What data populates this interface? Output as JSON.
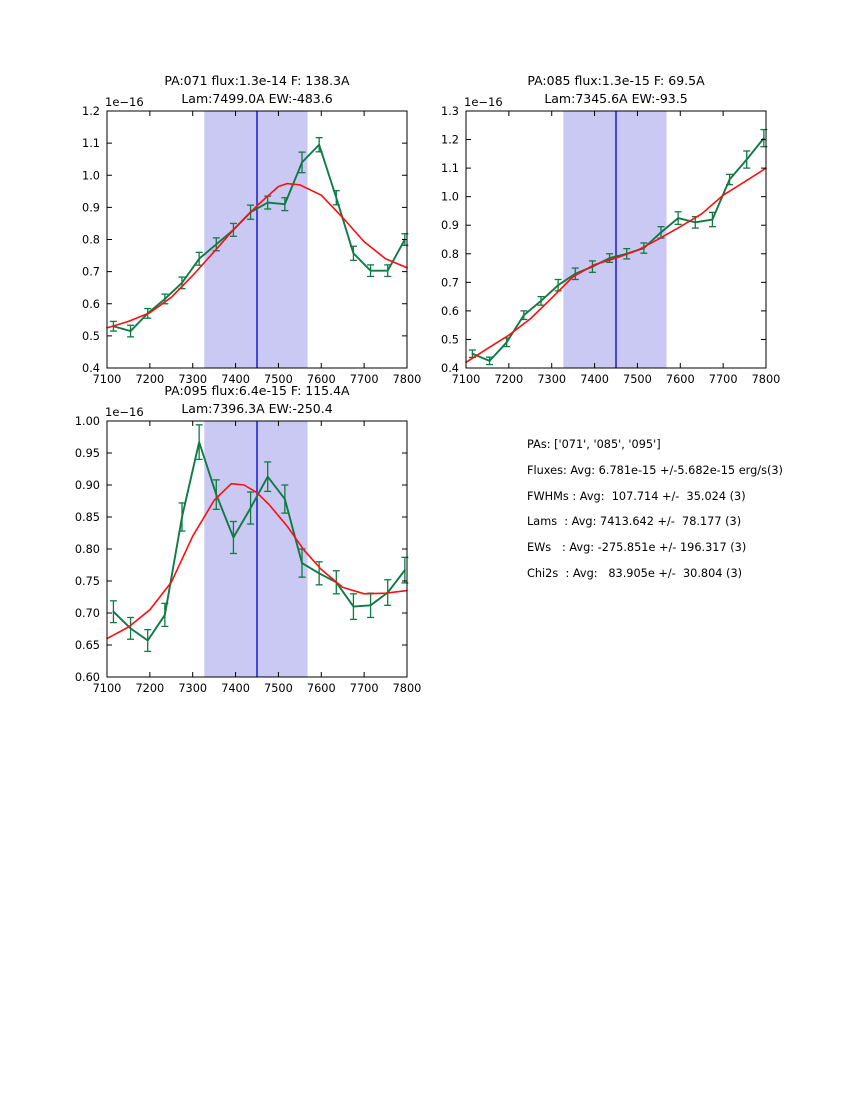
{
  "page": {
    "background": "#ffffff"
  },
  "colors": {
    "data_line": "#0f7a44",
    "fit_line": "#fb0f0f",
    "band_fill": "#c9c9f4",
    "center_line": "#0000cc",
    "frame": "#000000",
    "text": "#000000"
  },
  "stats_panel": {
    "lines": [
      "PAs: ['071', '085', '095']",
      "Fluxes: Avg: 6.781e-15 +/-5.682e-15 erg/s(3)",
      "FWHMs : Avg:  107.714 +/-  35.024 (3)",
      "Lams  : Avg: 7413.642 +/-  78.177 (3)",
      "EWs   : Avg: -275.851e +/- 196.317 (3)",
      "Chi2s  : Avg:   83.905e +/-  30.804 (3)"
    ]
  },
  "chart_data": [
    {
      "type": "line",
      "title_line1": "PA:071 flux:1.3e-14 F: 138.3A",
      "title_line2": "Lam:7499.0A EW:-483.6",
      "y_offset_label": "1e−16",
      "xlim": [
        7100,
        7800
      ],
      "ylim": [
        0.4,
        1.2
      ],
      "xticks": [
        7100,
        7200,
        7300,
        7400,
        7500,
        7600,
        7700,
        7800
      ],
      "ytick_labels": [
        "0.4",
        "0.5",
        "0.6",
        "0.7",
        "0.8",
        "0.9",
        "1.0",
        "1.1",
        "1.2"
      ],
      "band": [
        7327,
        7568
      ],
      "center_line_x": 7450,
      "grid": false,
      "series": [
        {
          "name": "spectrum-data",
          "role": "data",
          "color": "green",
          "x": [
            7115,
            7155,
            7195,
            7235,
            7275,
            7315,
            7355,
            7395,
            7435,
            7475,
            7515,
            7555,
            7595,
            7635,
            7675,
            7715,
            7755,
            7795
          ],
          "y": [
            0.53,
            0.515,
            0.57,
            0.615,
            0.665,
            0.74,
            0.785,
            0.83,
            0.885,
            0.915,
            0.91,
            1.04,
            1.095,
            0.93,
            0.757,
            0.703,
            0.703,
            0.8
          ],
          "yerr": [
            0.015,
            0.018,
            0.015,
            0.015,
            0.018,
            0.02,
            0.02,
            0.02,
            0.022,
            0.02,
            0.02,
            0.032,
            0.022,
            0.022,
            0.022,
            0.018,
            0.018,
            0.018
          ]
        },
        {
          "name": "gaussian-fit",
          "role": "fit",
          "color": "red",
          "x": [
            7100,
            7150,
            7200,
            7250,
            7300,
            7350,
            7400,
            7450,
            7500,
            7520,
            7550,
            7600,
            7650,
            7700,
            7750,
            7800
          ],
          "y": [
            0.525,
            0.545,
            0.572,
            0.62,
            0.688,
            0.762,
            0.838,
            0.905,
            0.965,
            0.974,
            0.97,
            0.938,
            0.868,
            0.793,
            0.74,
            0.712
          ]
        }
      ]
    },
    {
      "type": "line",
      "title_line1": "PA:085 flux:1.3e-15 F: 69.5A",
      "title_line2": "Lam:7345.6A EW:-93.5",
      "y_offset_label": "1e−16",
      "xlim": [
        7100,
        7800
      ],
      "ylim": [
        0.4,
        1.3
      ],
      "xticks": [
        7100,
        7200,
        7300,
        7400,
        7500,
        7600,
        7700,
        7800
      ],
      "ytick_labels": [
        "0.4",
        "0.5",
        "0.6",
        "0.7",
        "0.8",
        "0.9",
        "1.0",
        "1.1",
        "1.2",
        "1.3"
      ],
      "band": [
        7327,
        7568
      ],
      "center_line_x": 7450,
      "grid": false,
      "series": [
        {
          "name": "spectrum-data",
          "role": "data",
          "color": "green",
          "x": [
            7115,
            7155,
            7195,
            7235,
            7275,
            7315,
            7355,
            7395,
            7435,
            7475,
            7515,
            7555,
            7595,
            7635,
            7675,
            7715,
            7755,
            7795
          ],
          "y": [
            0.45,
            0.425,
            0.49,
            0.585,
            0.635,
            0.69,
            0.73,
            0.755,
            0.785,
            0.8,
            0.82,
            0.875,
            0.925,
            0.91,
            0.92,
            1.06,
            1.13,
            1.205
          ],
          "yerr": [
            0.013,
            0.013,
            0.015,
            0.015,
            0.015,
            0.02,
            0.02,
            0.02,
            0.015,
            0.018,
            0.018,
            0.02,
            0.022,
            0.02,
            0.025,
            0.018,
            0.03,
            0.03
          ]
        },
        {
          "name": "gaussian-fit",
          "role": "fit",
          "color": "red",
          "x": [
            7100,
            7150,
            7200,
            7250,
            7300,
            7350,
            7400,
            7450,
            7500,
            7550,
            7600,
            7650,
            7700,
            7750,
            7800
          ],
          "y": [
            0.42,
            0.468,
            0.515,
            0.572,
            0.645,
            0.72,
            0.762,
            0.785,
            0.812,
            0.852,
            0.895,
            0.94,
            1.005,
            1.052,
            1.1
          ]
        }
      ]
    },
    {
      "type": "line",
      "title_line1": "PA:095 flux:6.4e-15 F: 115.4A",
      "title_line2": "Lam:7396.3A EW:-250.4",
      "y_offset_label": "1e−16",
      "xlim": [
        7100,
        7800
      ],
      "ylim": [
        0.6,
        1.0
      ],
      "xticks": [
        7100,
        7200,
        7300,
        7400,
        7500,
        7600,
        7700,
        7800
      ],
      "ytick_labels": [
        "0.60",
        "0.65",
        "0.70",
        "0.75",
        "0.80",
        "0.85",
        "0.90",
        "0.95",
        "1.00"
      ],
      "band": [
        7327,
        7568
      ],
      "center_line_x": 7450,
      "grid": false,
      "series": [
        {
          "name": "spectrum-data",
          "role": "data",
          "color": "green",
          "x": [
            7115,
            7155,
            7195,
            7235,
            7275,
            7315,
            7355,
            7395,
            7435,
            7475,
            7515,
            7555,
            7595,
            7635,
            7675,
            7715,
            7755,
            7795
          ],
          "y": [
            0.702,
            0.676,
            0.657,
            0.697,
            0.85,
            0.967,
            0.885,
            0.818,
            0.864,
            0.913,
            0.878,
            0.778,
            0.762,
            0.748,
            0.71,
            0.712,
            0.732,
            0.767
          ],
          "yerr": [
            0.017,
            0.017,
            0.017,
            0.018,
            0.022,
            0.027,
            0.023,
            0.025,
            0.025,
            0.023,
            0.022,
            0.022,
            0.018,
            0.018,
            0.02,
            0.019,
            0.02,
            0.02
          ]
        },
        {
          "name": "gaussian-fit",
          "role": "fit",
          "color": "red",
          "x": [
            7100,
            7150,
            7200,
            7250,
            7300,
            7350,
            7390,
            7420,
            7450,
            7480,
            7520,
            7560,
            7600,
            7650,
            7700,
            7750,
            7800
          ],
          "y": [
            0.66,
            0.678,
            0.705,
            0.748,
            0.82,
            0.876,
            0.902,
            0.9,
            0.888,
            0.868,
            0.836,
            0.798,
            0.768,
            0.74,
            0.73,
            0.731,
            0.735
          ]
        }
      ]
    }
  ]
}
